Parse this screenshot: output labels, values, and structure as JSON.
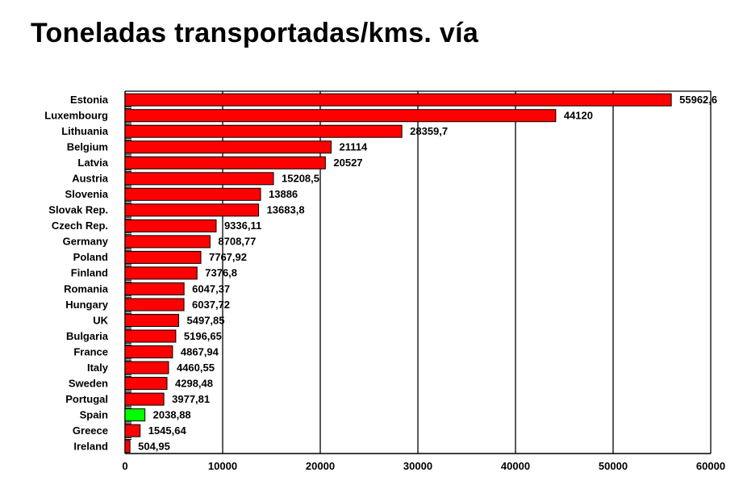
{
  "chart_data": {
    "type": "bar",
    "orientation": "horizontal",
    "title": "Toneladas transportadas/kms. vía",
    "categories": [
      "Estonia",
      "Luxembourg",
      "Lithuania",
      "Belgium",
      "Latvia",
      "Austria",
      "Slovenia",
      "Slovak Rep.",
      "Czech Rep.",
      "Germany",
      "Poland",
      "Finland",
      "Romania",
      "Hungary",
      "UK",
      "Bulgaria",
      "France",
      "Italy",
      "Sweden",
      "Portugal",
      "Spain",
      "Greece",
      "Ireland"
    ],
    "values": [
      55962.6,
      44120,
      28359.7,
      21114,
      20527,
      15208.5,
      13886,
      13683.8,
      9336.11,
      8708.77,
      7767.92,
      7376.8,
      6047.37,
      6037.72,
      5497.85,
      5196.65,
      4867.94,
      4460.55,
      4298.48,
      3977.81,
      2038.88,
      1545.64,
      504.95
    ],
    "value_labels": [
      "55962,6",
      "44120",
      "28359,7",
      "21114",
      "20527",
      "15208,5",
      "13886",
      "13683,8",
      "9336,11",
      "8708,77",
      "7767,92",
      "7376,8",
      "6047,37",
      "6037,72",
      "5497,85",
      "5196,65",
      "4867,94",
      "4460,55",
      "4298,48",
      "3977,81",
      "2038,88",
      "1545,64",
      "504,95"
    ],
    "highlight": "Spain",
    "colors": {
      "bar": "#ff0000",
      "highlight": "#00ff00",
      "grid": "#000000"
    },
    "xlim": [
      0,
      60000
    ],
    "xticks": [
      0,
      10000,
      20000,
      30000,
      40000,
      50000,
      60000
    ],
    "xtick_labels": [
      "0",
      "10000",
      "20000",
      "30000",
      "40000",
      "50000",
      "60000"
    ],
    "grid": true,
    "xlabel": "",
    "ylabel": ""
  }
}
